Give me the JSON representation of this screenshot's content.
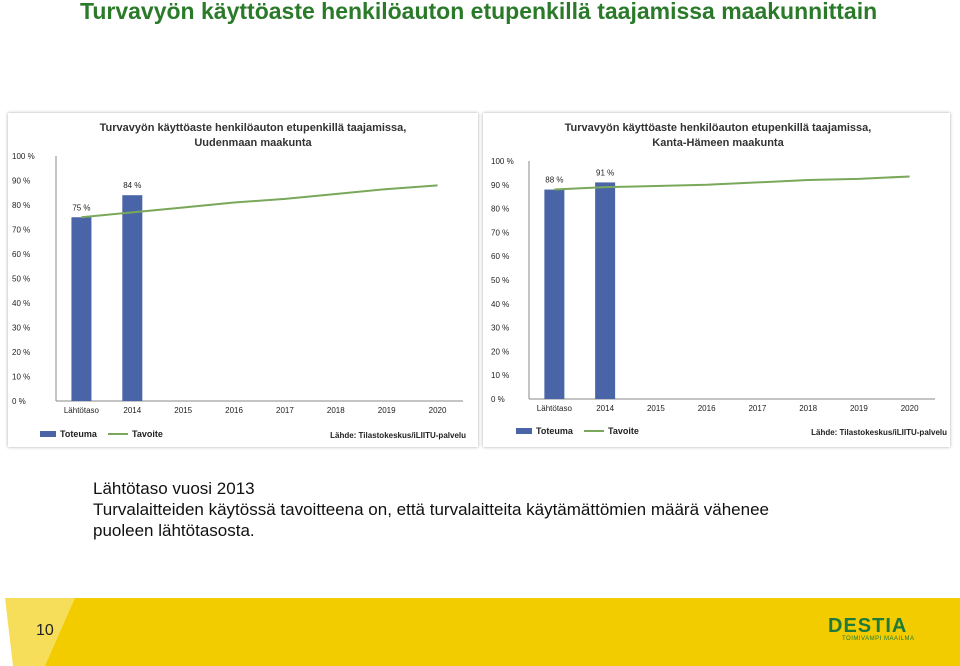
{
  "page": {
    "title": "Turvavyön käyttöaste henkilöauton etupenkillä taajamissa maakunnittain",
    "body_lines": [
      "Lähtötaso vuosi 2013",
      "Turvalaitteiden käytössä tavoitteena on, että turvalaitteita käytämättömien määrä vähenee",
      "puoleen lähtötasosta."
    ],
    "page_number": "10",
    "logo": {
      "name": "DESTIA",
      "tagline": "TOIMIVAMPI MAAILMA",
      "color": "#1e7a3a"
    },
    "colors": {
      "title": "#2a7a2a",
      "bar": "#4a64a8",
      "line": "#7aa85a",
      "footer": "#f3cc00"
    }
  },
  "chart_data": [
    {
      "type": "bar",
      "title_lines": [
        "Turvavyön käyttöaste henkilöauton etupenkillä taajamissa,",
        "Uudenmaan maakunta"
      ],
      "categories": [
        "Lähtötaso",
        "2014",
        "2015",
        "2016",
        "2017",
        "2018",
        "2019",
        "2020"
      ],
      "ylim": [
        0,
        100
      ],
      "yticks": [
        "0 %",
        "10 %",
        "20 %",
        "30 %",
        "40 %",
        "50 %",
        "60 %",
        "70 %",
        "80 %",
        "90 %",
        "100 %"
      ],
      "series": [
        {
          "name": "Toteuma",
          "kind": "bar",
          "values": [
            75,
            84,
            null,
            null,
            null,
            null,
            null,
            null
          ],
          "labels": [
            "75 %",
            "84 %"
          ]
        },
        {
          "name": "Tavoite",
          "kind": "line",
          "values": [
            75,
            77,
            79,
            81,
            82.5,
            84.5,
            86.5,
            88
          ]
        }
      ],
      "source": "Lähde: Tilastokeskus/iLIITU-palvelu"
    },
    {
      "type": "bar",
      "title_lines": [
        "Turvavyön käyttöaste henkilöauton etupenkillä taajamissa,",
        "Kanta-Hämeen maakunta"
      ],
      "categories": [
        "Lähtötaso",
        "2014",
        "2015",
        "2016",
        "2017",
        "2018",
        "2019",
        "2020"
      ],
      "ylim": [
        0,
        100
      ],
      "yticks": [
        "0 %",
        "10 %",
        "20 %",
        "30 %",
        "40 %",
        "50 %",
        "60 %",
        "70 %",
        "80 %",
        "90 %",
        "100 %"
      ],
      "series": [
        {
          "name": "Toteuma",
          "kind": "bar",
          "values": [
            88,
            91,
            null,
            null,
            null,
            null,
            null,
            null
          ],
          "labels": [
            "88 %",
            "91 %"
          ]
        },
        {
          "name": "Tavoite",
          "kind": "line",
          "values": [
            88,
            89,
            89.5,
            90,
            91,
            92,
            92.5,
            93.5
          ]
        }
      ],
      "source": "Lähde: Tilastokeskus/iLIITU-palvelu"
    }
  ]
}
